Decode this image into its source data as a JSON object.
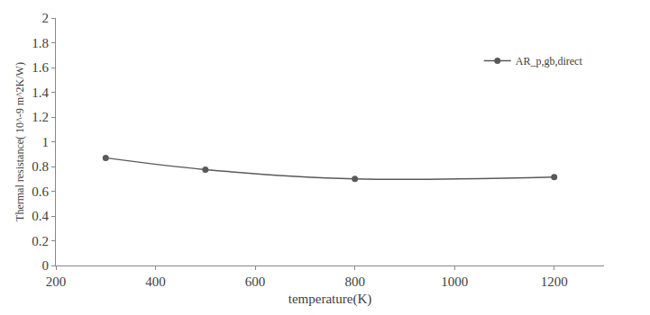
{
  "chart_data": {
    "type": "line",
    "x_label": "temperature(K)",
    "y_label": "Thermal resistance( 10^-9 m^2K/W)",
    "x": [
      300,
      500,
      800,
      1200
    ],
    "series": [
      {
        "name": "AR_p,gb,direct",
        "color": "#595959",
        "marker": "circle",
        "line_style": "solid",
        "values": [
          0.87,
          0.775,
          0.7,
          0.715
        ]
      }
    ],
    "xlim": [
      200,
      1300
    ],
    "xticks": [
      200,
      400,
      600,
      800,
      1000,
      1200
    ],
    "ylim": [
      0,
      2
    ],
    "yticks": [
      0,
      0.2,
      0.4,
      0.6,
      0.8,
      1,
      1.2,
      1.4,
      1.6,
      1.8,
      2
    ],
    "grid": false,
    "legend": "upper right"
  }
}
